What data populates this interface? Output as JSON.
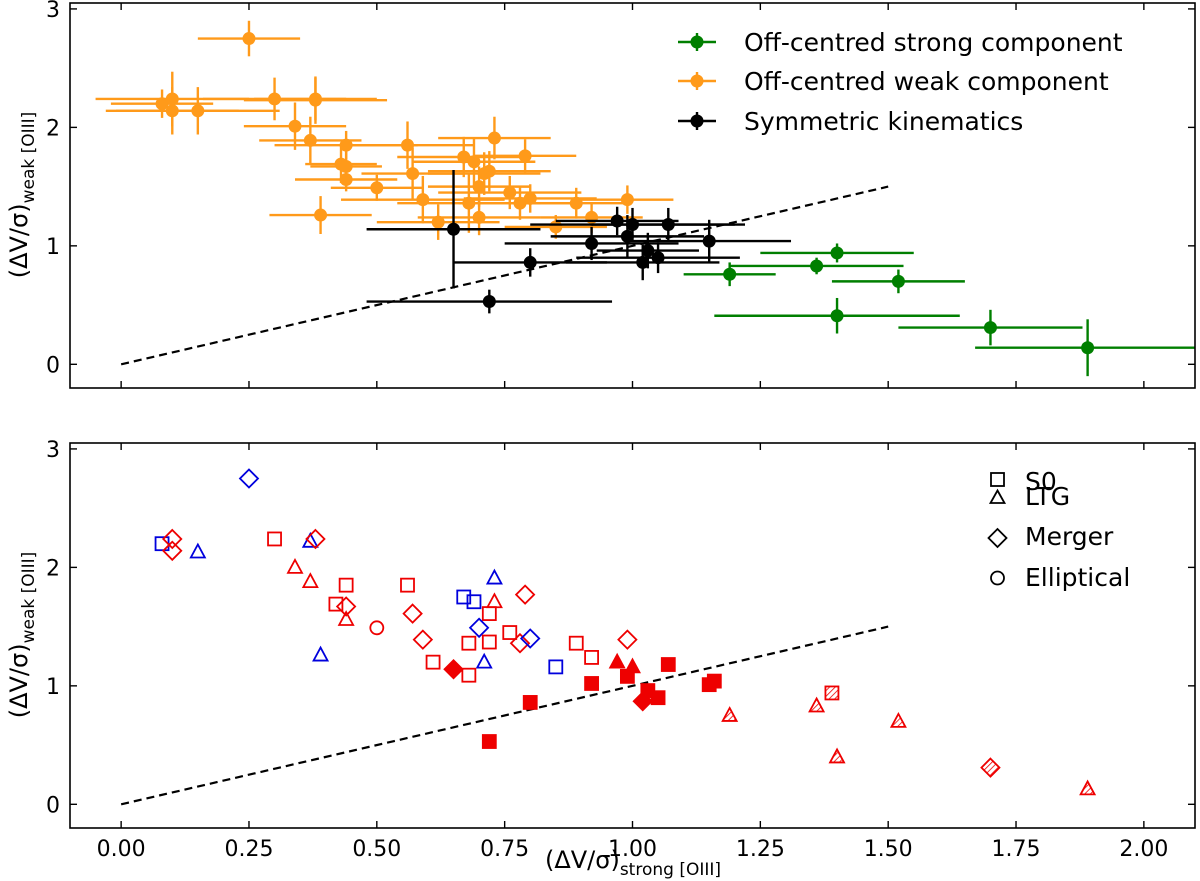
{
  "chart_data": [
    {
      "type": "scatter",
      "panel": "top",
      "xlim": [
        -0.1,
        2.1
      ],
      "ylim": [
        -0.2,
        3.05
      ],
      "xticks": [
        0.0,
        0.25,
        0.5,
        0.75,
        1.0,
        1.25,
        1.5,
        1.75,
        2.0
      ],
      "yticks": [
        0,
        1,
        2,
        3
      ],
      "ytick_labels": [
        "0",
        "1",
        "2",
        "3"
      ],
      "ylabel_main": "(ΔV/σ)",
      "ylabel_sub": "weak [OIII]",
      "reference_line": {
        "style": "dashed",
        "x": [
          0.0,
          1.5
        ],
        "y": [
          0.0,
          1.5
        ]
      },
      "legend_position": "top-right",
      "legend": [
        {
          "label": "Off-centred strong component",
          "color": "#007f00"
        },
        {
          "label": "Off-centred weak component",
          "color": "#ff9a1a"
        },
        {
          "label": "Symmetric kinematics",
          "color": "#000000"
        }
      ],
      "series": [
        {
          "name": "Off-centred strong component",
          "color": "#007f00",
          "points": [
            [
              1.19,
              0.76,
              0.09,
              0.1
            ],
            [
              1.36,
              0.83,
              0.17,
              0.07
            ],
            [
              1.4,
              0.94,
              0.15,
              0.08
            ],
            [
              1.52,
              0.7,
              0.13,
              0.1
            ],
            [
              1.4,
              0.41,
              0.24,
              0.15
            ],
            [
              1.7,
              0.31,
              0.18,
              0.15
            ],
            [
              1.89,
              0.14,
              0.22,
              0.24
            ]
          ]
        },
        {
          "name": "Off-centred weak component",
          "color": "#ff9a1a",
          "points": [
            [
              0.25,
              2.75,
              0.1,
              0.15
            ],
            [
              0.08,
              2.2,
              0.1,
              0.12
            ],
            [
              0.1,
              2.24,
              0.15,
              0.23
            ],
            [
              0.1,
              2.14,
              0.13,
              0.2
            ],
            [
              0.15,
              2.14,
              0.16,
              0.2
            ],
            [
              0.3,
              2.24,
              0.14,
              0.18
            ],
            [
              0.38,
              2.23,
              0.14,
              0.2
            ],
            [
              0.38,
              2.24,
              0.12,
              0.18
            ],
            [
              0.34,
              2.01,
              0.1,
              0.2
            ],
            [
              0.37,
              1.89,
              0.1,
              0.2
            ],
            [
              0.44,
              1.85,
              0.14,
              0.12
            ],
            [
              0.43,
              1.69,
              0.07,
              0.16
            ],
            [
              0.44,
              1.67,
              0.07,
              0.18
            ],
            [
              0.44,
              1.56,
              0.1,
              0.1
            ],
            [
              0.5,
              1.49,
              0.09,
              0.11
            ],
            [
              0.39,
              1.26,
              0.1,
              0.16
            ],
            [
              0.56,
              1.85,
              0.13,
              0.2
            ],
            [
              0.57,
              1.61,
              0.1,
              0.22
            ],
            [
              0.59,
              1.39,
              0.16,
              0.2
            ],
            [
              0.62,
              1.2,
              0.12,
              0.15
            ],
            [
              0.67,
              1.75,
              0.13,
              0.17
            ],
            [
              0.69,
              1.71,
              0.12,
              0.2
            ],
            [
              0.73,
              1.91,
              0.11,
              0.18
            ],
            [
              0.72,
              1.63,
              0.12,
              0.17
            ],
            [
              0.7,
              1.5,
              0.1,
              0.17
            ],
            [
              0.71,
              1.61,
              0.11,
              0.18
            ],
            [
              0.68,
              1.36,
              0.14,
              0.25
            ],
            [
              0.7,
              1.24,
              0.12,
              0.15
            ],
            [
              0.76,
              1.45,
              0.14,
              0.14
            ],
            [
              0.79,
              1.76,
              0.1,
              0.14
            ],
            [
              0.8,
              1.4,
              0.13,
              0.12
            ],
            [
              0.78,
              1.36,
              0.12,
              0.14
            ],
            [
              0.85,
              1.16,
              0.1,
              0.1
            ],
            [
              0.89,
              1.36,
              0.1,
              0.13
            ],
            [
              0.92,
              1.24,
              0.1,
              0.13
            ],
            [
              0.99,
              1.39,
              0.09,
              0.12
            ]
          ]
        },
        {
          "name": "Symmetric kinematics",
          "color": "#000000",
          "points": [
            [
              0.65,
              1.14,
              0.17,
              0.5
            ],
            [
              0.72,
              0.53,
              0.24,
              0.1
            ],
            [
              0.8,
              0.86,
              0.15,
              0.12
            ],
            [
              0.92,
              1.02,
              0.17,
              0.14
            ],
            [
              0.97,
              1.21,
              0.12,
              0.12
            ],
            [
              0.99,
              1.08,
              0.15,
              0.18
            ],
            [
              1.0,
              1.18,
              0.2,
              0.14
            ],
            [
              1.02,
              0.86,
              0.15,
              0.15
            ],
            [
              1.03,
              0.96,
              0.1,
              0.15
            ],
            [
              1.05,
              0.9,
              0.16,
              0.13
            ],
            [
              1.07,
              1.18,
              0.15,
              0.14
            ],
            [
              1.15,
              1.04,
              0.16,
              0.18
            ]
          ]
        }
      ]
    },
    {
      "type": "scatter",
      "panel": "bottom",
      "xlim": [
        -0.1,
        2.1
      ],
      "ylim": [
        -0.2,
        3.05
      ],
      "xticks": [
        0.0,
        0.25,
        0.5,
        0.75,
        1.0,
        1.25,
        1.5,
        1.75,
        2.0
      ],
      "xtick_labels": [
        "0.00",
        "0.25",
        "0.50",
        "0.75",
        "1.00",
        "1.25",
        "1.50",
        "1.75",
        "2.00"
      ],
      "yticks": [
        0,
        1,
        2,
        3
      ],
      "ytick_labels": [
        "0",
        "1",
        "2",
        "3"
      ],
      "xlabel_main": "(ΔV/σ)",
      "xlabel_sub": "strong [OIII]",
      "ylabel_main": "(ΔV/σ)",
      "ylabel_sub": "weak [OIII]",
      "reference_line": {
        "style": "dashed",
        "x": [
          0.0,
          1.5
        ],
        "y": [
          0.0,
          1.5
        ]
      },
      "legend_position": "top-right",
      "legend": [
        {
          "label": "S0",
          "marker": "square"
        },
        {
          "label": "LTG",
          "marker": "triangle"
        },
        {
          "label": "Merger",
          "marker": "diamond"
        },
        {
          "label": "Elliptical",
          "marker": "circle"
        }
      ],
      "points": [
        {
          "x": 0.08,
          "y": 2.2,
          "marker": "square",
          "color": "#0000dd",
          "style": "open"
        },
        {
          "x": 0.15,
          "y": 2.13,
          "marker": "triangle",
          "color": "#0000dd",
          "style": "open"
        },
        {
          "x": 0.1,
          "y": 2.24,
          "marker": "diamond",
          "color": "#ee0000",
          "style": "open"
        },
        {
          "x": 0.1,
          "y": 2.14,
          "marker": "diamond",
          "color": "#ee0000",
          "style": "open"
        },
        {
          "x": 0.25,
          "y": 2.75,
          "marker": "diamond",
          "color": "#0000dd",
          "style": "open"
        },
        {
          "x": 0.3,
          "y": 2.24,
          "marker": "square",
          "color": "#ee0000",
          "style": "open"
        },
        {
          "x": 0.37,
          "y": 2.22,
          "marker": "triangle",
          "color": "#0000dd",
          "style": "open"
        },
        {
          "x": 0.38,
          "y": 2.24,
          "marker": "diamond",
          "color": "#ee0000",
          "style": "open"
        },
        {
          "x": 0.34,
          "y": 2.0,
          "marker": "triangle",
          "color": "#ee0000",
          "style": "open"
        },
        {
          "x": 0.37,
          "y": 1.88,
          "marker": "triangle",
          "color": "#ee0000",
          "style": "open"
        },
        {
          "x": 0.44,
          "y": 1.85,
          "marker": "square",
          "color": "#ee0000",
          "style": "open"
        },
        {
          "x": 0.42,
          "y": 1.69,
          "marker": "square",
          "color": "#ee0000",
          "style": "open"
        },
        {
          "x": 0.44,
          "y": 1.67,
          "marker": "diamond",
          "color": "#ee0000",
          "style": "open"
        },
        {
          "x": 0.44,
          "y": 1.56,
          "marker": "triangle",
          "color": "#ee0000",
          "style": "open"
        },
        {
          "x": 0.39,
          "y": 1.26,
          "marker": "triangle",
          "color": "#0000dd",
          "style": "open"
        },
        {
          "x": 0.5,
          "y": 1.49,
          "marker": "circle",
          "color": "#ee0000",
          "style": "open"
        },
        {
          "x": 0.56,
          "y": 1.85,
          "marker": "square",
          "color": "#ee0000",
          "style": "open"
        },
        {
          "x": 0.57,
          "y": 1.61,
          "marker": "diamond",
          "color": "#ee0000",
          "style": "open"
        },
        {
          "x": 0.59,
          "y": 1.39,
          "marker": "diamond",
          "color": "#ee0000",
          "style": "open"
        },
        {
          "x": 0.61,
          "y": 1.2,
          "marker": "square",
          "color": "#ee0000",
          "style": "open"
        },
        {
          "x": 0.67,
          "y": 1.75,
          "marker": "square",
          "color": "#0000dd",
          "style": "open"
        },
        {
          "x": 0.69,
          "y": 1.71,
          "marker": "square",
          "color": "#0000dd",
          "style": "open"
        },
        {
          "x": 0.73,
          "y": 1.91,
          "marker": "triangle",
          "color": "#0000dd",
          "style": "open"
        },
        {
          "x": 0.72,
          "y": 1.61,
          "marker": "square",
          "color": "#ee0000",
          "style": "open"
        },
        {
          "x": 0.73,
          "y": 1.71,
          "marker": "triangle",
          "color": "#ee0000",
          "style": "open"
        },
        {
          "x": 0.7,
          "y": 1.49,
          "marker": "diamond",
          "color": "#0000dd",
          "style": "open"
        },
        {
          "x": 0.68,
          "y": 1.36,
          "marker": "square",
          "color": "#ee0000",
          "style": "open"
        },
        {
          "x": 0.72,
          "y": 1.37,
          "marker": "square",
          "color": "#ee0000",
          "style": "open"
        },
        {
          "x": 0.71,
          "y": 1.2,
          "marker": "triangle",
          "color": "#0000dd",
          "style": "open"
        },
        {
          "x": 0.68,
          "y": 1.09,
          "marker": "square",
          "color": "#ee0000",
          "style": "open"
        },
        {
          "x": 0.76,
          "y": 1.45,
          "marker": "square",
          "color": "#ee0000",
          "style": "open"
        },
        {
          "x": 0.79,
          "y": 1.77,
          "marker": "diamond",
          "color": "#ee0000",
          "style": "open"
        },
        {
          "x": 0.78,
          "y": 1.36,
          "marker": "diamond",
          "color": "#ee0000",
          "style": "open"
        },
        {
          "x": 0.8,
          "y": 1.4,
          "marker": "diamond",
          "color": "#0000dd",
          "style": "open"
        },
        {
          "x": 0.85,
          "y": 1.16,
          "marker": "square",
          "color": "#0000dd",
          "style": "open"
        },
        {
          "x": 0.89,
          "y": 1.36,
          "marker": "square",
          "color": "#ee0000",
          "style": "open"
        },
        {
          "x": 0.92,
          "y": 1.24,
          "marker": "square",
          "color": "#ee0000",
          "style": "open"
        },
        {
          "x": 0.99,
          "y": 1.39,
          "marker": "diamond",
          "color": "#ee0000",
          "style": "open"
        },
        {
          "x": 0.65,
          "y": 1.14,
          "marker": "diamond",
          "color": "#ee0000",
          "style": "filled"
        },
        {
          "x": 0.72,
          "y": 0.53,
          "marker": "square",
          "color": "#ee0000",
          "style": "filled"
        },
        {
          "x": 0.8,
          "y": 0.86,
          "marker": "square",
          "color": "#ee0000",
          "style": "filled"
        },
        {
          "x": 0.92,
          "y": 1.02,
          "marker": "square",
          "color": "#ee0000",
          "style": "filled"
        },
        {
          "x": 0.97,
          "y": 1.2,
          "marker": "triangle",
          "color": "#ee0000",
          "style": "filled"
        },
        {
          "x": 0.99,
          "y": 1.08,
          "marker": "square",
          "color": "#ee0000",
          "style": "filled"
        },
        {
          "x": 1.0,
          "y": 1.16,
          "marker": "triangle",
          "color": "#ee0000",
          "style": "filled"
        },
        {
          "x": 1.02,
          "y": 0.87,
          "marker": "diamond",
          "color": "#ee0000",
          "style": "filled"
        },
        {
          "x": 1.03,
          "y": 0.96,
          "marker": "square",
          "color": "#ee0000",
          "style": "filled"
        },
        {
          "x": 1.05,
          "y": 0.9,
          "marker": "square",
          "color": "#ee0000",
          "style": "filled"
        },
        {
          "x": 1.07,
          "y": 1.18,
          "marker": "square",
          "color": "#ee0000",
          "style": "filled"
        },
        {
          "x": 1.15,
          "y": 1.01,
          "marker": "square",
          "color": "#ee0000",
          "style": "filled"
        },
        {
          "x": 1.16,
          "y": 1.04,
          "marker": "square",
          "color": "#ee0000",
          "style": "filled"
        },
        {
          "x": 1.19,
          "y": 0.75,
          "marker": "triangle",
          "color": "#ee0000",
          "style": "hatched"
        },
        {
          "x": 1.36,
          "y": 0.83,
          "marker": "triangle",
          "color": "#ee0000",
          "style": "hatched"
        },
        {
          "x": 1.39,
          "y": 0.94,
          "marker": "square",
          "color": "#ee0000",
          "style": "hatched"
        },
        {
          "x": 1.52,
          "y": 0.7,
          "marker": "triangle",
          "color": "#ee0000",
          "style": "hatched"
        },
        {
          "x": 1.4,
          "y": 0.4,
          "marker": "triangle",
          "color": "#ee0000",
          "style": "hatched"
        },
        {
          "x": 1.7,
          "y": 0.31,
          "marker": "diamond",
          "color": "#ee0000",
          "style": "hatched"
        },
        {
          "x": 1.89,
          "y": 0.13,
          "marker": "triangle",
          "color": "#ee0000",
          "style": "hatched"
        }
      ]
    }
  ]
}
